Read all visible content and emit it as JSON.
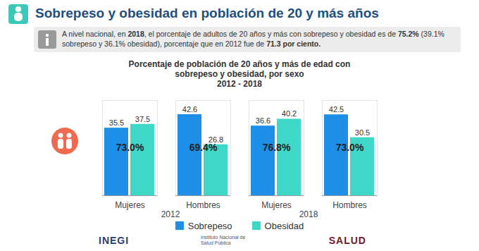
{
  "header": {
    "title": "Sobrepeso y obesidad en población de 20 y más años"
  },
  "info": [
    {
      "text": "A nivel nacional, en ",
      "bold": false
    },
    {
      "text": "2018",
      "bold": true
    },
    {
      "text": ", el porcentaje de adultos de 20 años y más con sobrepeso y obesidad es de ",
      "bold": false
    },
    {
      "text": "75.2%",
      "bold": true
    },
    {
      "text": " (39.1% sobrepeso y 36.1% obesidad), porcentaje que en 2012 fue de ",
      "bold": false
    },
    {
      "text": "71.3 por ciento.",
      "bold": true
    }
  ],
  "chart_data": {
    "type": "bar",
    "title": "Porcentaje de población de 20 años y más de edad con sobrepeso y obesidad, por sexo",
    "subtitle": "2012 - 2018",
    "categories": [
      "Mujeres",
      "Hombres",
      "Mujeres",
      "Hombres"
    ],
    "groups": [
      "2012",
      "2012",
      "2018",
      "2018"
    ],
    "series": [
      {
        "name": "Sobrepeso",
        "color": "#1e8fe8",
        "values": [
          35.5,
          42.6,
          36.6,
          42.5
        ]
      },
      {
        "name": "Obesidad",
        "color": "#3fd8c8",
        "values": [
          37.5,
          26.8,
          40.2,
          30.5
        ]
      }
    ],
    "totals": {
      "values": [
        73.0,
        69.4,
        76.8,
        73.0
      ],
      "value_labels": [
        "73.0%",
        "69.4%",
        "76.8%",
        "73.0%"
      ]
    },
    "ylim": [
      0,
      50
    ],
    "yticks": [],
    "data_labels": true,
    "tick_labels": "x",
    "legend": "bottom"
  },
  "logos": [
    "INEGI",
    "Instituto Nacional de Salud Pública",
    "SALUD"
  ]
}
